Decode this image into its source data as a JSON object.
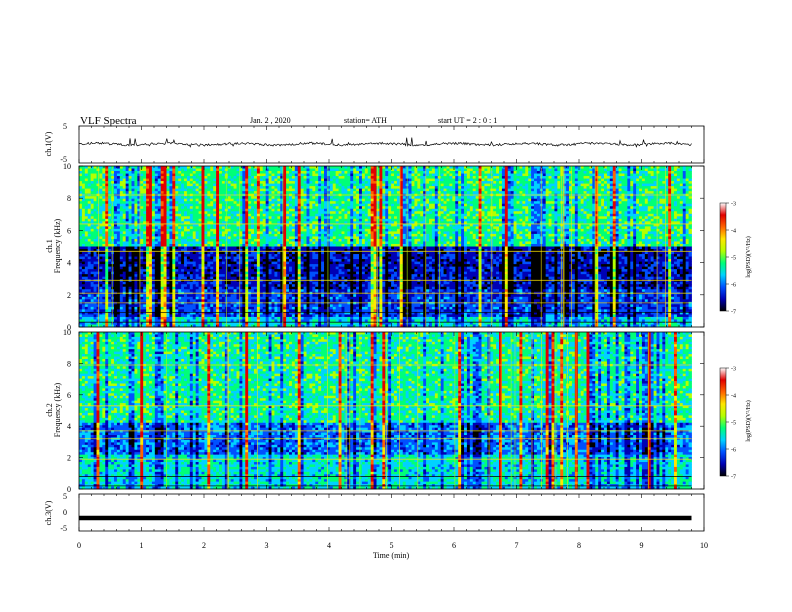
{
  "header": {
    "title": "VLF  Spectra",
    "date": "Jan. 2 , 2020",
    "station": "station= ATH",
    "start": "start  UT  =    2 : 0  : 1"
  },
  "colors": {
    "scale": [
      "#000000",
      "#0000b4",
      "#0050ff",
      "#00d2ff",
      "#00ff78",
      "#b4ff00",
      "#ffe600",
      "#ff6400",
      "#e10000",
      "#ffffff"
    ],
    "trace": "#000000"
  },
  "chart_data": [
    {
      "type": "line",
      "name": "ch1-waveform",
      "ylabel": "ch.1(V)",
      "ylim": [
        -5,
        5
      ],
      "yticks": [
        "5",
        "-5"
      ],
      "xlim": [
        0,
        10
      ],
      "baseline": 0.1,
      "amplitude": 0.6,
      "end_min": 9.8
    },
    {
      "type": "heatmap",
      "name": "ch1-spectrogram",
      "channel": "ch.1",
      "ylabel": "Frequency  (kHz)",
      "ylim": [
        0,
        10
      ],
      "yticks": [
        "0",
        "2",
        "4",
        "6",
        "8",
        "10"
      ],
      "xlim": [
        0,
        10
      ],
      "end_min": 9.8,
      "colorbar": {
        "label": "log(PSD)(V²/Hz)",
        "range": [
          -7,
          -3
        ],
        "ticks": [
          "-3",
          "-4",
          "-5",
          "-6",
          "-7"
        ]
      }
    },
    {
      "type": "heatmap",
      "name": "ch2-spectrogram",
      "channel": "ch.2",
      "ylabel": "Frequency  (kHz)",
      "ylim": [
        0,
        10
      ],
      "yticks": [
        "0",
        "2",
        "4",
        "6",
        "8",
        "10"
      ],
      "xlim": [
        0,
        10
      ],
      "end_min": 9.8,
      "colorbar": {
        "label": "log(PSD)(V²/Hz)",
        "range": [
          -7,
          -3
        ],
        "ticks": [
          "-3",
          "-4",
          "-5",
          "-6",
          "-7"
        ]
      }
    },
    {
      "type": "line",
      "name": "ch3-waveform",
      "ylabel": "ch.3(V)",
      "ylim": [
        -5,
        5
      ],
      "yticks": [
        "5",
        "0",
        "-5"
      ],
      "xlim": [
        0,
        10
      ],
      "baseline": -1.5,
      "amplitude": 0.0,
      "end_min": 9.8,
      "xlabel": "Time  (min)",
      "xticks": [
        "0",
        "1",
        "2",
        "3",
        "4",
        "5",
        "6",
        "7",
        "8",
        "9",
        "10"
      ]
    }
  ]
}
